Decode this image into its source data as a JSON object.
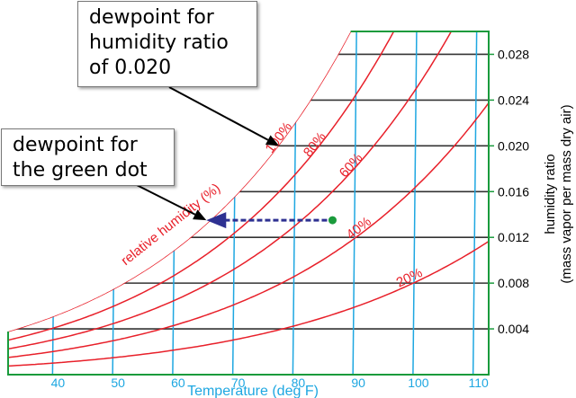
{
  "chart_data": {
    "type": "psychrometric",
    "xlabel": "Temperature (deg F)",
    "ylabel_line1": "humidity ratio",
    "ylabel_line2": "(mass vapor per mass dry air)",
    "xlim": [
      32,
      112
    ],
    "ylim": [
      0.0,
      0.03
    ],
    "x_ticks": [
      40,
      50,
      60,
      70,
      80,
      90,
      100,
      110
    ],
    "y_ticks": [
      "0.004",
      "0.008",
      "0.012",
      "0.016",
      "0.020",
      "0.024",
      "0.028"
    ],
    "rh_curves": [
      {
        "label": "100%",
        "rh": 1.0
      },
      {
        "label": "80%",
        "rh": 0.8
      },
      {
        "label": "60%",
        "rh": 0.6
      },
      {
        "label": "40%",
        "rh": 0.4
      },
      {
        "label": "20%",
        "rh": 0.2
      }
    ],
    "rh_axis_label": "relative humidity (%)",
    "green_dot": {
      "temperature": 86,
      "humidity_ratio": 0.0135
    },
    "dewpoint_arrow": {
      "from_temperature": 86,
      "to_temperature": 65,
      "humidity_ratio": 0.0135
    }
  },
  "callouts": {
    "top": [
      "dewpoint for",
      "humidity ratio",
      "of 0.020"
    ],
    "left": [
      "dewpoint for",
      "the green dot"
    ]
  },
  "colors": {
    "curve": "#e8202a",
    "grid_h": "#333333",
    "grid_v": "#1ea7e1",
    "border": "#1a9b3c",
    "dot": "#1a9b3c",
    "arrow": "#2e3192"
  }
}
